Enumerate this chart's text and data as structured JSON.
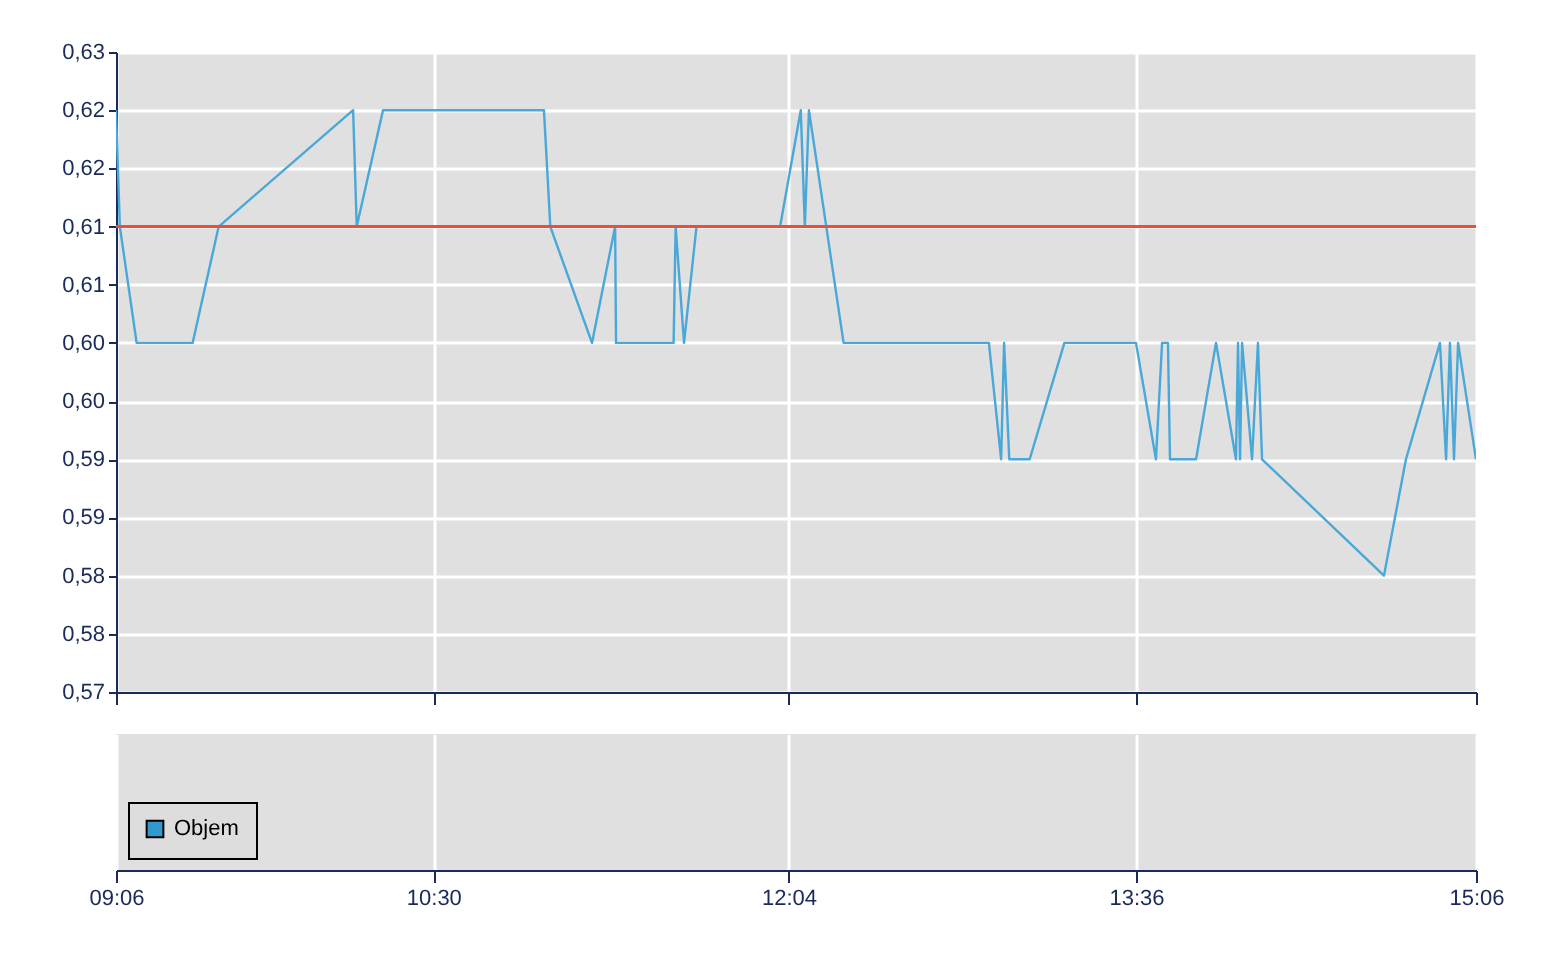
{
  "chart_data": [
    {
      "type": "line",
      "x": [
        9.1,
        9.117,
        9.191,
        9.438,
        9.553,
        10.146,
        10.162,
        10.278,
        10.988,
        11.016,
        11.2,
        11.302,
        11.306,
        11.56,
        11.569,
        11.606,
        11.661,
        12.03,
        12.121,
        12.139,
        12.157,
        12.31,
        12.951,
        13.005,
        13.018,
        13.041,
        13.131,
        13.284,
        13.6,
        13.688,
        13.715,
        13.741,
        13.75,
        13.865,
        13.953,
        14.041,
        14.05,
        14.059,
        14.068,
        14.112,
        14.138,
        14.156,
        14.694,
        14.791,
        14.941,
        14.968,
        14.985,
        15.003,
        15.021,
        15.1
      ],
      "series": [
        {
          "color": "#4aa8d8",
          "values": [
            0.62,
            0.61,
            0.6,
            0.6,
            0.61,
            0.62,
            0.61,
            0.62,
            0.62,
            0.61,
            0.6,
            0.61,
            0.6,
            0.6,
            0.61,
            0.6,
            0.61,
            0.61,
            0.62,
            0.61,
            0.62,
            0.6,
            0.6,
            0.59,
            0.6,
            0.59,
            0.59,
            0.6,
            0.6,
            0.59,
            0.6,
            0.6,
            0.59,
            0.59,
            0.6,
            0.59,
            0.6,
            0.59,
            0.6,
            0.59,
            0.6,
            0.59,
            0.58,
            0.59,
            0.6,
            0.59,
            0.6,
            0.59,
            0.6,
            0.59
          ]
        }
      ],
      "xlim": [
        9.1,
        15.1
      ],
      "xticks": [
        {
          "value": 9.1,
          "label": "09:06"
        },
        {
          "value": 10.5,
          "label": "10:30"
        },
        {
          "value": 12.0667,
          "label": "12:04"
        },
        {
          "value": 13.6,
          "label": "13:36"
        },
        {
          "value": 15.1,
          "label": "15:06"
        }
      ],
      "ylim": [
        0.57,
        0.625
      ],
      "yticks": [
        {
          "value": 0.57,
          "label": "0,57"
        },
        {
          "value": 0.575,
          "label": "0,58"
        },
        {
          "value": 0.58,
          "label": "0,58"
        },
        {
          "value": 0.585,
          "label": "0,59"
        },
        {
          "value": 0.59,
          "label": "0,59"
        },
        {
          "value": 0.595,
          "label": "0,60"
        },
        {
          "value": 0.6,
          "label": "0,60"
        },
        {
          "value": 0.605,
          "label": "0,61"
        },
        {
          "value": 0.61,
          "label": "0,61"
        },
        {
          "value": 0.615,
          "label": "0,62"
        },
        {
          "value": 0.62,
          "label": "0,62"
        },
        {
          "value": 0.625,
          "label": "0,63"
        }
      ],
      "ref_lines": [
        {
          "axis": "y",
          "value": 0.61,
          "color": "#e8503c"
        }
      ],
      "grid": true,
      "tick_labels": "y"
    },
    {
      "type": "other",
      "series": [
        {
          "name": "Objem",
          "color": "#3399cc"
        }
      ],
      "legend": "bottom left"
    }
  ]
}
